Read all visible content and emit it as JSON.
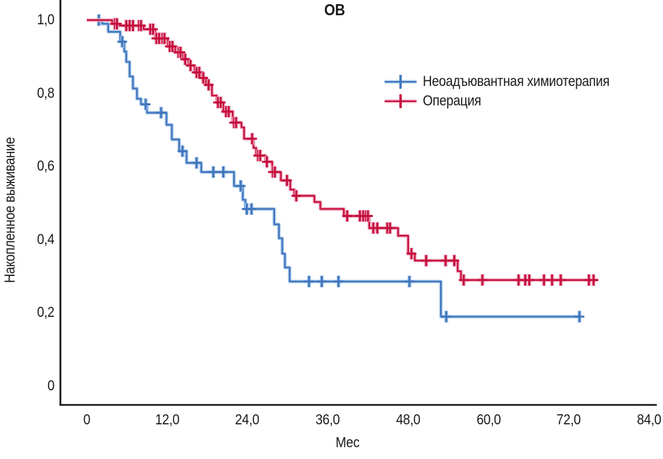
{
  "page": {
    "background": "#ffffff"
  },
  "chart_data": {
    "type": "line",
    "subtype": "kaplan_meier_step_survival",
    "title": "ОВ",
    "xlabel": "Мес",
    "ylabel": "Накопленное выживание",
    "xlim": [
      0,
      84
    ],
    "ylim": [
      0,
      1.0
    ],
    "grid": false,
    "decimal_separator": ",",
    "axis_color": "#161616",
    "text_color": "#1a1a1a",
    "xticks": {
      "values": [
        0,
        12,
        24,
        36,
        48,
        60,
        72,
        84
      ],
      "labels": [
        "0",
        "12,0",
        "24,0",
        "36,0",
        "48,0",
        "60,0",
        "72,0",
        "84,0"
      ]
    },
    "yticks": {
      "values": [
        0,
        0.2,
        0.4,
        0.6,
        0.8,
        1.0
      ],
      "labels": [
        "0",
        "0,2",
        "0,4",
        "0,6",
        "0,8",
        "1,0"
      ]
    },
    "legend": {
      "position": "inside-upper-right"
    },
    "series": [
      {
        "id": "neoadjuvant-chemotherapy",
        "name": "Неоадъювантная химиотерапия",
        "color": "#3e74bc",
        "halo": "#a9c8ea",
        "start": [
          0,
          1.0
        ],
        "steps": [
          [
            2.3,
            0.99
          ],
          [
            3.2,
            0.968
          ],
          [
            5.0,
            0.941
          ],
          [
            5.6,
            0.914
          ],
          [
            5.9,
            0.886
          ],
          [
            6.4,
            0.846
          ],
          [
            6.9,
            0.813
          ],
          [
            7.5,
            0.785
          ],
          [
            8.1,
            0.77
          ],
          [
            9.0,
            0.747
          ],
          [
            11.9,
            0.714
          ],
          [
            12.7,
            0.674
          ],
          [
            13.8,
            0.642
          ],
          [
            14.9,
            0.61
          ],
          [
            17.1,
            0.585
          ],
          [
            22.0,
            0.547
          ],
          [
            23.3,
            0.509
          ],
          [
            23.7,
            0.484
          ],
          [
            28.0,
            0.442
          ],
          [
            28.7,
            0.404
          ],
          [
            29.2,
            0.362
          ],
          [
            29.6,
            0.324
          ],
          [
            30.3,
            0.286
          ],
          [
            52.9,
            0.19
          ]
        ],
        "end_time": 73.7,
        "censor_marks": [
          [
            1.8,
            1.0
          ],
          [
            5.3,
            0.941
          ],
          [
            8.8,
            0.77
          ],
          [
            11.1,
            0.747
          ],
          [
            14.3,
            0.642
          ],
          [
            16.4,
            0.61
          ],
          [
            18.9,
            0.585
          ],
          [
            20.4,
            0.585
          ],
          [
            23.0,
            0.547
          ],
          [
            23.9,
            0.484
          ],
          [
            24.6,
            0.484
          ],
          [
            33.2,
            0.286
          ],
          [
            35.1,
            0.286
          ],
          [
            37.6,
            0.286
          ],
          [
            48.2,
            0.286
          ],
          [
            53.7,
            0.19
          ],
          [
            73.6,
            0.19
          ]
        ]
      },
      {
        "id": "surgery",
        "name": "Операция",
        "color": "#c40d3c",
        "halo": "#f0a7bc",
        "start": [
          0,
          1.0
        ],
        "steps": [
          [
            3.8,
            0.99
          ],
          [
            4.6,
            0.985
          ],
          [
            8.5,
            0.975
          ],
          [
            10.2,
            0.95
          ],
          [
            12.1,
            0.928
          ],
          [
            13.2,
            0.912
          ],
          [
            14.3,
            0.893
          ],
          [
            15.2,
            0.876
          ],
          [
            16.1,
            0.857
          ],
          [
            17.1,
            0.842
          ],
          [
            17.8,
            0.823
          ],
          [
            18.7,
            0.794
          ],
          [
            19.4,
            0.775
          ],
          [
            20.4,
            0.75
          ],
          [
            21.8,
            0.72
          ],
          [
            23.1,
            0.707
          ],
          [
            23.5,
            0.676
          ],
          [
            24.9,
            0.651
          ],
          [
            25.3,
            0.63
          ],
          [
            26.7,
            0.613
          ],
          [
            27.7,
            0.585
          ],
          [
            29.0,
            0.562
          ],
          [
            30.4,
            0.537
          ],
          [
            31.0,
            0.52
          ],
          [
            34.0,
            0.503
          ],
          [
            34.9,
            0.484
          ],
          [
            38.4,
            0.465
          ],
          [
            42.2,
            0.432
          ],
          [
            46.5,
            0.411
          ],
          [
            48.0,
            0.362
          ],
          [
            49.0,
            0.343
          ],
          [
            55.4,
            0.314
          ],
          [
            55.9,
            0.29
          ]
        ],
        "end_time": 76.2,
        "censor_marks": [
          [
            4.2,
            0.99
          ],
          [
            4.5,
            0.99
          ],
          [
            5.9,
            0.985
          ],
          [
            6.4,
            0.985
          ],
          [
            6.9,
            0.985
          ],
          [
            7.8,
            0.985
          ],
          [
            8.1,
            0.985
          ],
          [
            9.5,
            0.975
          ],
          [
            9.9,
            0.975
          ],
          [
            10.4,
            0.95
          ],
          [
            10.8,
            0.95
          ],
          [
            11.3,
            0.95
          ],
          [
            11.6,
            0.95
          ],
          [
            12.4,
            0.928
          ],
          [
            12.8,
            0.928
          ],
          [
            13.7,
            0.912
          ],
          [
            14.0,
            0.912
          ],
          [
            14.7,
            0.893
          ],
          [
            15.5,
            0.876
          ],
          [
            16.4,
            0.857
          ],
          [
            16.8,
            0.857
          ],
          [
            17.4,
            0.842
          ],
          [
            18.2,
            0.823
          ],
          [
            19.6,
            0.775
          ],
          [
            20.0,
            0.775
          ],
          [
            20.8,
            0.75
          ],
          [
            21.2,
            0.75
          ],
          [
            22.0,
            0.72
          ],
          [
            22.3,
            0.72
          ],
          [
            24.7,
            0.676
          ],
          [
            25.6,
            0.63
          ],
          [
            25.9,
            0.63
          ],
          [
            26.9,
            0.613
          ],
          [
            27.8,
            0.585
          ],
          [
            28.1,
            0.585
          ],
          [
            29.9,
            0.562
          ],
          [
            31.3,
            0.52
          ],
          [
            38.9,
            0.465
          ],
          [
            40.8,
            0.465
          ],
          [
            41.3,
            0.465
          ],
          [
            41.7,
            0.465
          ],
          [
            42.0,
            0.465
          ],
          [
            42.8,
            0.432
          ],
          [
            43.4,
            0.432
          ],
          [
            44.9,
            0.432
          ],
          [
            45.3,
            0.432
          ],
          [
            48.5,
            0.362
          ],
          [
            50.7,
            0.343
          ],
          [
            53.6,
            0.343
          ],
          [
            54.9,
            0.343
          ],
          [
            56.3,
            0.29
          ],
          [
            59.1,
            0.29
          ],
          [
            64.5,
            0.29
          ],
          [
            65.5,
            0.29
          ],
          [
            66.1,
            0.29
          ],
          [
            68.3,
            0.29
          ],
          [
            69.5,
            0.29
          ],
          [
            70.8,
            0.29
          ],
          [
            75.0,
            0.29
          ],
          [
            75.7,
            0.29
          ]
        ]
      }
    ]
  }
}
